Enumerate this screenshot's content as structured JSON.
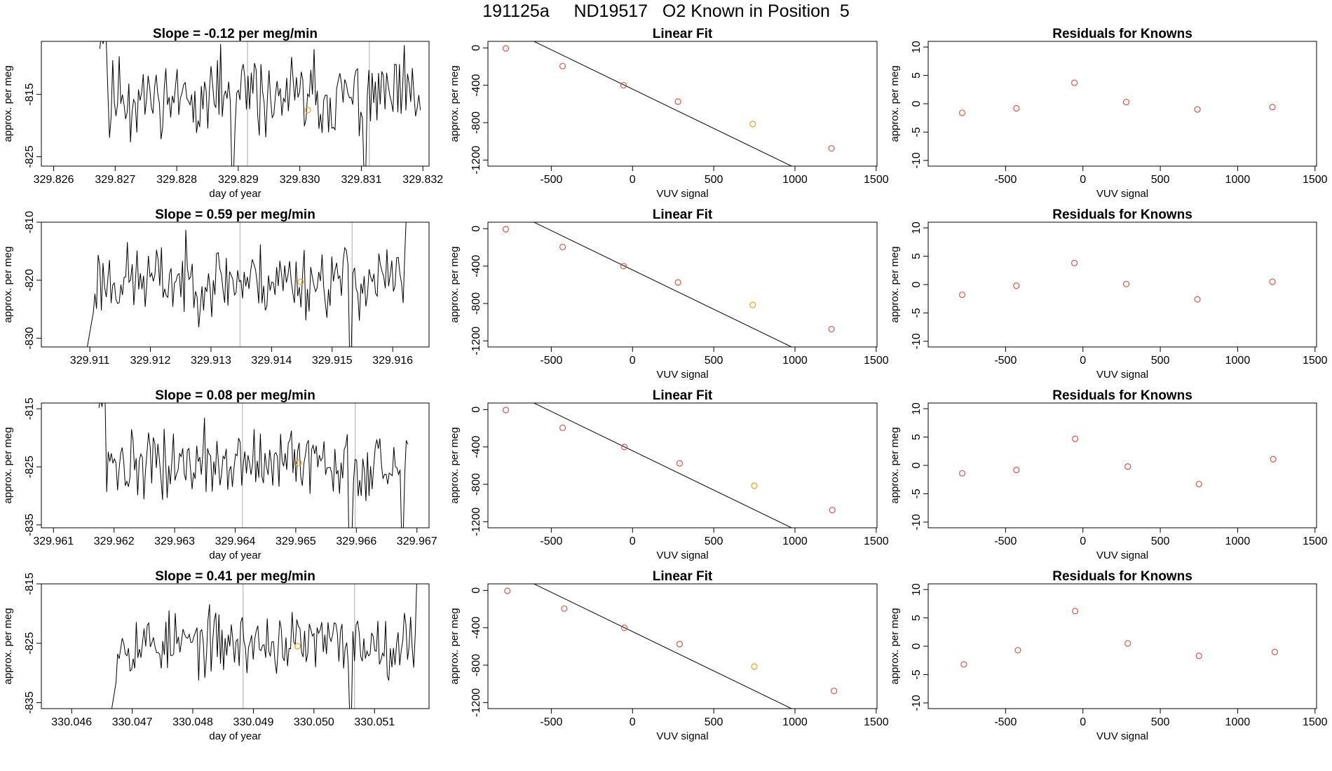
{
  "figure_title": "191125a     ND19517   O2 Known in Position  5",
  "colors": {
    "trace": "#000000",
    "vline": "#bdbdbd",
    "known": "#d9534f",
    "current": "#f0a020",
    "fit": "#000000"
  },
  "chart_data": [
    {
      "type": "line",
      "title": "Slope =  -0.12  per meg/min",
      "xlabel": "day of year",
      "ylabel": "approx. per meg",
      "xlim": [
        329.8258,
        329.8321
      ],
      "ylim": [
        -826.5,
        -806.5
      ],
      "xticks": [
        329.826,
        329.827,
        329.828,
        329.829,
        329.83,
        329.831,
        329.832
      ],
      "xtick_labels": [
        "329.826",
        "329.827",
        "329.828",
        "329.829",
        "329.830",
        "329.831",
        "329.832"
      ],
      "yticks": [
        -815,
        -825
      ],
      "ytick_labels": [
        "-815",
        "-825"
      ],
      "vlines": [
        329.82915,
        329.83113
      ],
      "marker": {
        "x": 329.83013,
        "y": -817.5
      },
      "series": {
        "x_start": 329.82675,
        "x_end": 329.83196,
        "n": 200,
        "seed": 11,
        "base": -815.5,
        "amp": 3.8,
        "start_high": -806,
        "dip_x": 329.8289,
        "dip_y": -828,
        "dip2_x": 329.83105,
        "dip2_y": -828
      }
    },
    {
      "type": "scatter",
      "title": "Linear Fit",
      "xlabel": "VUV signal",
      "ylabel": "approx. per meg",
      "xlim": [
        -890,
        1505
      ],
      "ylim": [
        -1265,
        70
      ],
      "xticks": [
        -500,
        0,
        500,
        1000,
        1500
      ],
      "xtick_labels": [
        "-500",
        "0",
        "500",
        "1000",
        "1500"
      ],
      "yticks": [
        0,
        -400,
        -800,
        -1200
      ],
      "ytick_labels": [
        "0",
        "-400",
        "-800",
        "-1200"
      ],
      "x": [
        -780,
        -430,
        -55,
        280,
        740,
        1225
      ],
      "y": [
        -5,
        -195,
        -400,
        -575,
        -815,
        -1075
      ],
      "current_index": 4,
      "fit": {
        "x0": -840,
        "x1": 1410,
        "slope": -0.8415,
        "intercept": -441
      }
    },
    {
      "type": "scatter",
      "title": "Residuals for Knowns",
      "xlabel": "VUV signal",
      "ylabel": "approx. per meg",
      "xlim": [
        -1000,
        1510
      ],
      "ylim": [
        -11,
        11
      ],
      "xticks": [
        -500,
        0,
        500,
        1000,
        1500
      ],
      "xtick_labels": [
        "-500",
        "0",
        "500",
        "1000",
        "1500"
      ],
      "yticks": [
        10,
        5,
        0,
        -5,
        -10
      ],
      "ytick_labels": [
        "10",
        "5",
        "0",
        "-5",
        "-10"
      ],
      "x": [
        -780,
        -430,
        -55,
        280,
        740,
        1225
      ],
      "y": [
        -1.6,
        -0.8,
        3.7,
        0.3,
        -1.0,
        -0.6
      ]
    },
    {
      "type": "line",
      "title": "Slope =  0.59  per meg/min",
      "xlabel": "",
      "ylabel": "approx. per meg",
      "xlim": [
        329.9102,
        329.9166
      ],
      "ylim": [
        -831.5,
        -810
      ],
      "xticks": [
        329.911,
        329.912,
        329.913,
        329.914,
        329.915,
        329.916
      ],
      "xtick_labels": [
        "329.911",
        "329.912",
        "329.913",
        "329.914",
        "329.915",
        "329.916"
      ],
      "yticks": [
        -810,
        -820,
        -830
      ],
      "ytick_labels": [
        "-810",
        "-820",
        "-830"
      ],
      "vlines": [
        329.91348,
        329.91533
      ],
      "marker": {
        "x": 329.91448,
        "y": -820.3
      },
      "series": {
        "x_start": 329.91095,
        "x_end": 329.91628,
        "n": 200,
        "seed": 23,
        "base": -820,
        "amp": 3.8,
        "start_low": -832,
        "dip_x": 329.9153,
        "dip_y": -833,
        "end_high": -809
      }
    },
    {
      "type": "scatter",
      "title": "Linear Fit",
      "xlabel": "VUV signal",
      "ylabel": "approx. per meg",
      "xlim": [
        -890,
        1505
      ],
      "ylim": [
        -1265,
        70
      ],
      "xticks": [
        -500,
        0,
        500,
        1000,
        1500
      ],
      "xtick_labels": [
        "-500",
        "0",
        "500",
        "1000",
        "1500"
      ],
      "yticks": [
        0,
        -400,
        -800,
        -1200
      ],
      "ytick_labels": [
        "0",
        "-400",
        "-800",
        "-1200"
      ],
      "x": [
        -780,
        -430,
        -55,
        280,
        740,
        1225
      ],
      "y": [
        -5,
        -195,
        -400,
        -575,
        -815,
        -1075
      ],
      "current_index": 4,
      "fit": {
        "x0": -840,
        "x1": 1410,
        "slope": -0.8415,
        "intercept": -441
      }
    },
    {
      "type": "scatter",
      "title": "Residuals for Knowns",
      "xlabel": "VUV signal",
      "ylabel": "approx. per meg",
      "xlim": [
        -1000,
        1510
      ],
      "ylim": [
        -11,
        11
      ],
      "xticks": [
        -500,
        0,
        500,
        1000,
        1500
      ],
      "xtick_labels": [
        "-500",
        "0",
        "500",
        "1000",
        "1500"
      ],
      "yticks": [
        10,
        5,
        0,
        -5,
        -10
      ],
      "ytick_labels": [
        "10",
        "5",
        "0",
        "-5",
        "-10"
      ],
      "x": [
        -780,
        -430,
        -55,
        280,
        740,
        1225
      ],
      "y": [
        -1.8,
        -0.2,
        3.8,
        0.1,
        -2.6,
        0.5
      ]
    },
    {
      "type": "line",
      "title": "Slope =  0.08  per meg/min",
      "xlabel": "day of year",
      "ylabel": "approx. per meg",
      "xlim": [
        329.9608,
        329.9672
      ],
      "ylim": [
        -835.5,
        -814
      ],
      "xticks": [
        329.961,
        329.962,
        329.963,
        329.964,
        329.965,
        329.966,
        329.967
      ],
      "xtick_labels": [
        "329.961",
        "329.962",
        "329.963",
        "329.964",
        "329.965",
        "329.966",
        "329.967"
      ],
      "yticks": [
        -815,
        -825,
        -835
      ],
      "ytick_labels": [
        "-815",
        "-825",
        "-835"
      ],
      "vlines": [
        329.96412,
        329.96598
      ],
      "marker": {
        "x": 329.96505,
        "y": -824.3
      },
      "series": {
        "x_start": 329.96175,
        "x_end": 329.96685,
        "n": 200,
        "seed": 37,
        "base": -824.5,
        "amp": 3.5,
        "start_high": -813,
        "dip_x": 329.9659,
        "dip_y": -837,
        "dip2_x": 329.96677,
        "dip2_y": -837
      }
    },
    {
      "type": "scatter",
      "title": "Linear Fit",
      "xlabel": "VUV signal",
      "ylabel": "approx. per meg",
      "xlim": [
        -890,
        1505
      ],
      "ylim": [
        -1265,
        70
      ],
      "xticks": [
        -500,
        0,
        500,
        1000,
        1500
      ],
      "xtick_labels": [
        "-500",
        "0",
        "500",
        "1000",
        "1500"
      ],
      "yticks": [
        0,
        -400,
        -800,
        -1200
      ],
      "ytick_labels": [
        "0",
        "-400",
        "-800",
        "-1200"
      ],
      "x": [
        -780,
        -430,
        -50,
        290,
        750,
        1230
      ],
      "y": [
        -5,
        -195,
        -400,
        -575,
        -815,
        -1075
      ],
      "current_index": 4,
      "fit": {
        "x0": -840,
        "x1": 1410,
        "slope": -0.8415,
        "intercept": -441
      }
    },
    {
      "type": "scatter",
      "title": "Residuals for Knowns",
      "xlabel": "VUV signal",
      "ylabel": "approx. per meg",
      "xlim": [
        -1000,
        1510
      ],
      "ylim": [
        -11,
        11
      ],
      "xticks": [
        -500,
        0,
        500,
        1000,
        1500
      ],
      "xtick_labels": [
        "-500",
        "0",
        "500",
        "1000",
        "1500"
      ],
      "yticks": [
        10,
        5,
        0,
        -5,
        -10
      ],
      "ytick_labels": [
        "10",
        "5",
        "0",
        "-5",
        "-10"
      ],
      "x": [
        -780,
        -430,
        -50,
        290,
        750,
        1230
      ],
      "y": [
        -1.4,
        -0.8,
        4.7,
        -0.2,
        -3.3,
        1.1
      ]
    },
    {
      "type": "line",
      "title": "Slope =  0.41  per meg/min",
      "xlabel": "day of year",
      "ylabel": "approx. per meg",
      "xlim": [
        330.0455,
        330.0519
      ],
      "ylim": [
        -836,
        -815
      ],
      "xticks": [
        330.046,
        330.047,
        330.048,
        330.049,
        330.05,
        330.051
      ],
      "xtick_labels": [
        "330.046",
        "330.047",
        "330.048",
        "330.049",
        "330.050",
        "330.051"
      ],
      "yticks": [
        -815,
        -825,
        -835
      ],
      "ytick_labels": [
        "-815",
        "-825",
        "-835"
      ],
      "vlines": [
        330.04883,
        330.05067
      ],
      "marker": {
        "x": 330.04973,
        "y": -825.5
      },
      "series": {
        "x_start": 330.04663,
        "x_end": 330.05175,
        "n": 200,
        "seed": 53,
        "base": -825,
        "amp": 3.2,
        "start_low": -838,
        "dip_x": 330.0506,
        "dip_y": -838,
        "end_high": -814
      }
    },
    {
      "type": "scatter",
      "title": "Linear Fit",
      "xlabel": "VUV signal",
      "ylabel": "approx. per meg",
      "xlim": [
        -890,
        1505
      ],
      "ylim": [
        -1265,
        70
      ],
      "xticks": [
        -500,
        0,
        500,
        1000,
        1500
      ],
      "xtick_labels": [
        "-500",
        "0",
        "500",
        "1000",
        "1500"
      ],
      "yticks": [
        0,
        -400,
        -800,
        -1200
      ],
      "ytick_labels": [
        "0",
        "-400",
        "-800",
        "-1200"
      ],
      "x": [
        -770,
        -420,
        -50,
        290,
        750,
        1240
      ],
      "y": [
        -5,
        -195,
        -400,
        -575,
        -815,
        -1075
      ],
      "current_index": 4,
      "fit": {
        "x0": -840,
        "x1": 1410,
        "slope": -0.8415,
        "intercept": -441
      }
    },
    {
      "type": "scatter",
      "title": "Residuals for Knowns",
      "xlabel": "VUV signal",
      "ylabel": "approx. per meg",
      "xlim": [
        -1000,
        1510
      ],
      "ylim": [
        -11,
        11
      ],
      "xticks": [
        -500,
        0,
        500,
        1000,
        1500
      ],
      "xtick_labels": [
        "-500",
        "0",
        "500",
        "1000",
        "1500"
      ],
      "yticks": [
        10,
        5,
        0,
        -5,
        -10
      ],
      "ytick_labels": [
        "10",
        "5",
        "0",
        "-5",
        "-10"
      ],
      "x": [
        -770,
        -420,
        -50,
        290,
        750,
        1240
      ],
      "y": [
        -3.2,
        -0.7,
        6.2,
        0.5,
        -1.7,
        -1.0
      ]
    }
  ]
}
